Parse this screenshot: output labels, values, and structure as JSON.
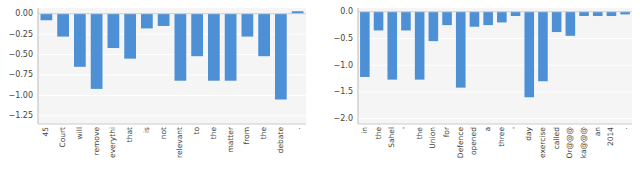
{
  "chart_data": [
    {
      "type": "bar",
      "categories": [
        "45",
        "Court",
        "will",
        "remove",
        "everythi",
        "that",
        "is",
        "not",
        "relevant",
        "to",
        "the",
        "matter",
        "from",
        "the",
        "debate",
        "."
      ],
      "values": [
        -0.08,
        -0.28,
        -0.65,
        -0.92,
        -0.42,
        -0.55,
        -0.18,
        -0.15,
        -0.82,
        -0.52,
        -0.82,
        -0.82,
        -0.28,
        -0.52,
        -1.05,
        0.03
      ],
      "ylim": [
        -1.35,
        0.07
      ],
      "yticks": [
        {
          "value": 0.0,
          "label": "0.00"
        },
        {
          "value": -0.25,
          "label": "−0.25"
        },
        {
          "value": -0.5,
          "label": "−0.50"
        },
        {
          "value": -0.75,
          "label": "−0.75"
        },
        {
          "value": -1.0,
          "label": "−1.00"
        },
        {
          "value": -1.25,
          "label": "−1.25"
        }
      ],
      "color": "#4d90d5",
      "grid": true
    },
    {
      "type": "bar",
      "categories": [
        "in",
        "the",
        "Sahel",
        "'",
        "the",
        "Union",
        "for",
        "Defence",
        "opened",
        "a",
        "three",
        "'",
        "day",
        "exercise",
        "called",
        "Or@@@",
        "ka@@@",
        "an",
        "2014",
        "."
      ],
      "values": [
        -1.22,
        -0.35,
        -1.27,
        -0.35,
        -1.27,
        -0.55,
        -0.25,
        -1.42,
        -0.28,
        -0.25,
        -0.2,
        -0.08,
        -1.6,
        -1.3,
        -0.38,
        -0.45,
        -0.08,
        -0.08,
        -0.08,
        -0.05
      ],
      "ylim": [
        -2.1,
        0.07
      ],
      "yticks": [
        {
          "value": 0.0,
          "label": "0.0"
        },
        {
          "value": -0.5,
          "label": "−0.5"
        },
        {
          "value": -1.0,
          "label": "−1.0"
        },
        {
          "value": -1.5,
          "label": "−1.5"
        },
        {
          "value": -2.0,
          "label": "−2.0"
        }
      ],
      "color": "#4d90d5",
      "grid": true
    }
  ]
}
